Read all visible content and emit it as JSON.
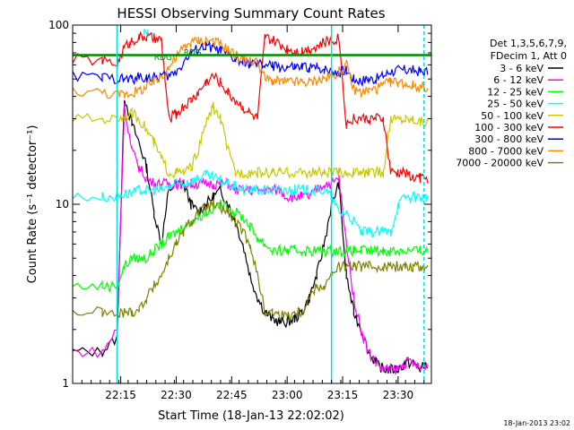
{
  "chart_data": {
    "type": "line",
    "title": "HESSI Observing Summary Count Rates",
    "xlabel": "Start Time (18-Jan-13 22:02:02)",
    "ylabel": "Count Rate (s⁻¹ detector⁻¹)",
    "yscale": "log",
    "ylim": [
      1,
      100
    ],
    "xlim_minutes": [
      0,
      97
    ],
    "x_tick_labels": [
      "22:15",
      "22:30",
      "22:45",
      "23:00",
      "23:15",
      "23:30"
    ],
    "x_tick_minutes": [
      13,
      28,
      43,
      58,
      73,
      88
    ],
    "y_tick_labels": [
      "1",
      "10",
      "100"
    ],
    "y_tick_values": [
      1,
      10,
      100
    ],
    "grid": false,
    "legend_position": "right",
    "legend_header": [
      "Det 1,3,5,6,7,9,",
      "FDecim 1, Att 0"
    ],
    "footer_date": "18-Jan-2013 23:02",
    "annotations": [
      {
        "text": "N",
        "x": 19,
        "y": 88,
        "color": "#00e0e0"
      },
      {
        "text": "F",
        "x": 15,
        "y": 75,
        "color": "#ff0000"
      },
      {
        "text": "RDG",
        "x": 22,
        "y": 64,
        "color": "#008800"
      },
      {
        "text": "RDG",
        "x": 30,
        "y": 68,
        "color": "#008800"
      }
    ],
    "vertical_lines": [
      {
        "x": 12,
        "color": "#00e0e0",
        "style": "solid"
      },
      {
        "x": 70,
        "color": "#00e0e0",
        "style": "solid"
      },
      {
        "x": 95,
        "color": "#00e0e0",
        "style": "dashed"
      }
    ],
    "series": [
      {
        "name": "3 - 6 keV",
        "color": "#000000",
        "x": [
          0,
          8,
          12,
          14,
          16,
          18,
          20,
          22,
          24,
          26,
          28,
          30,
          32,
          34,
          36,
          38,
          40,
          42,
          44,
          46,
          48,
          50,
          52,
          54,
          56,
          58,
          60,
          62,
          64,
          66,
          68,
          70,
          72,
          74,
          76,
          78,
          80,
          82,
          84,
          86,
          88,
          90,
          92,
          94,
          96
        ],
        "values": [
          1.5,
          1.5,
          1.8,
          40,
          28,
          22,
          16,
          9,
          6,
          12,
          13,
          13,
          10,
          9,
          10,
          11,
          12,
          10,
          8,
          6,
          4,
          3,
          2.5,
          2.3,
          2.2,
          2.2,
          2.3,
          2.5,
          3,
          4,
          6,
          10,
          13,
          4,
          2.5,
          2,
          1.5,
          1.3,
          1.2,
          1.2,
          1.2,
          1.3,
          1.3,
          1.2,
          1.3
        ]
      },
      {
        "name": "6 - 12 keV",
        "color": "#ff00ff",
        "x": [
          0,
          8,
          12,
          14,
          16,
          18,
          20,
          22,
          24,
          26,
          28,
          30,
          32,
          34,
          36,
          38,
          40,
          42,
          44,
          46,
          48,
          50,
          52,
          54,
          56,
          58,
          60,
          62,
          64,
          66,
          68,
          70,
          72,
          74,
          76,
          78,
          80,
          82,
          84,
          86,
          88,
          90,
          92,
          94,
          96
        ],
        "values": [
          1.5,
          1.5,
          2,
          35,
          20,
          16,
          14,
          13,
          13,
          13,
          13,
          13,
          13,
          13,
          13,
          13,
          13,
          13,
          12,
          12,
          12,
          12,
          12,
          12,
          12,
          11,
          11,
          11,
          11,
          12,
          13,
          13,
          14,
          6,
          3,
          2,
          1.5,
          1.3,
          1.2,
          1.2,
          1.2,
          1.3,
          1.3,
          1.2,
          1.3
        ]
      },
      {
        "name": "12 - 25 keV",
        "color": "#00ff00",
        "x": [
          0,
          8,
          12,
          14,
          16,
          18,
          20,
          22,
          24,
          26,
          28,
          30,
          32,
          34,
          36,
          38,
          40,
          42,
          44,
          46,
          48,
          50,
          52,
          54,
          56,
          58,
          60,
          62,
          64,
          66,
          68,
          70,
          72,
          74,
          76,
          78,
          80,
          82,
          84,
          86,
          88,
          90,
          92,
          94,
          96
        ],
        "values": [
          3.5,
          3.5,
          3.5,
          4.5,
          5,
          5,
          5,
          5.5,
          6,
          6.5,
          7,
          7.5,
          8,
          8.5,
          9,
          9.5,
          10,
          9.5,
          9,
          8.5,
          7.5,
          6.5,
          6,
          5.5,
          5.5,
          5.5,
          5.5,
          5.5,
          5.5,
          5.5,
          5.5,
          5.5,
          5.5,
          5.5,
          5.5,
          5.5,
          5.5,
          5.5,
          5.5,
          5.5,
          5.5,
          5.5,
          5.5,
          5.5,
          5.5
        ]
      },
      {
        "name": "25 - 50 keV",
        "color": "#00ffff",
        "x": [
          0,
          8,
          12,
          14,
          16,
          18,
          20,
          22,
          24,
          26,
          28,
          30,
          32,
          34,
          36,
          38,
          40,
          42,
          44,
          46,
          48,
          50,
          52,
          54,
          56,
          58,
          60,
          62,
          64,
          66,
          68,
          70,
          72,
          74,
          76,
          78,
          80,
          82,
          84,
          86,
          88,
          90,
          92,
          94,
          96
        ],
        "values": [
          11,
          11,
          11,
          11.5,
          11.5,
          12,
          12,
          12,
          12,
          12.5,
          13,
          13,
          13.5,
          14,
          14.5,
          14,
          13.5,
          13,
          12.5,
          12,
          12,
          12,
          12,
          12,
          12,
          12,
          12,
          12,
          12,
          12,
          12,
          11,
          9,
          9,
          8,
          7,
          7,
          7,
          7,
          7,
          10,
          11,
          11,
          11,
          11
        ]
      },
      {
        "name": "50 - 100 keV",
        "color": "#c8c800",
        "x": [
          0,
          8,
          12,
          14,
          16,
          18,
          20,
          22,
          24,
          26,
          28,
          30,
          32,
          34,
          36,
          38,
          40,
          42,
          44,
          46,
          48,
          50,
          52,
          54,
          56,
          58,
          60,
          62,
          64,
          66,
          68,
          70,
          72,
          74,
          76,
          78,
          80,
          82,
          84,
          86,
          88,
          90,
          92,
          94,
          96
        ],
        "values": [
          30,
          30,
          30,
          31,
          32,
          30,
          26,
          22,
          18,
          15,
          15,
          15,
          16,
          20,
          28,
          35,
          30,
          20,
          15,
          15,
          15,
          15,
          15,
          15,
          15,
          15,
          15,
          15,
          15,
          15,
          15,
          15,
          15,
          15,
          15,
          15,
          15,
          15,
          15,
          30,
          30,
          30,
          30,
          29,
          29
        ]
      },
      {
        "name": "100 - 300 keV",
        "color": "#ff0000",
        "x": [
          0,
          8,
          12,
          14,
          16,
          18,
          20,
          22,
          24,
          26,
          28,
          30,
          32,
          34,
          36,
          38,
          40,
          42,
          44,
          46,
          48,
          50,
          52,
          54,
          56,
          58,
          60,
          62,
          64,
          66,
          68,
          70,
          72,
          74,
          76,
          78,
          80,
          82,
          84,
          86,
          88,
          90,
          92,
          94,
          96
        ],
        "values": [
          65,
          63,
          60,
          75,
          82,
          85,
          86,
          84,
          82,
          30,
          32,
          35,
          38,
          42,
          48,
          52,
          48,
          42,
          38,
          35,
          32,
          30,
          85,
          82,
          78,
          74,
          72,
          72,
          74,
          76,
          80,
          82,
          85,
          28,
          30,
          30,
          30,
          30,
          30,
          15,
          15,
          15,
          14,
          14,
          14
        ]
      },
      {
        "name": "300 - 800 keV",
        "color": "#0000ff",
        "x": [
          0,
          8,
          12,
          14,
          16,
          18,
          20,
          22,
          24,
          26,
          28,
          30,
          32,
          34,
          36,
          38,
          40,
          42,
          44,
          46,
          48,
          50,
          52,
          54,
          56,
          58,
          60,
          62,
          64,
          66,
          68,
          70,
          72,
          74,
          76,
          78,
          80,
          82,
          84,
          86,
          88,
          90,
          92,
          94,
          96
        ],
        "values": [
          52,
          51,
          50,
          50,
          50,
          51,
          51,
          51,
          52,
          52,
          55,
          62,
          70,
          74,
          76,
          75,
          72,
          68,
          64,
          62,
          61,
          60,
          60,
          59,
          58,
          58,
          58,
          58,
          58,
          58,
          57,
          55,
          55,
          56,
          50,
          49,
          50,
          50,
          52,
          55,
          56,
          56,
          56,
          55,
          55
        ]
      },
      {
        "name": "800 - 7000 keV",
        "color": "#ff8800",
        "x": [
          0,
          8,
          12,
          14,
          16,
          18,
          20,
          22,
          24,
          26,
          28,
          30,
          32,
          34,
          36,
          38,
          40,
          42,
          44,
          46,
          48,
          50,
          52,
          54,
          56,
          58,
          60,
          62,
          64,
          66,
          68,
          70,
          72,
          74,
          76,
          78,
          80,
          82,
          84,
          86,
          88,
          90,
          92,
          94,
          96
        ],
        "values": [
          43,
          42,
          41,
          41,
          42,
          43,
          45,
          48,
          52,
          58,
          66,
          75,
          80,
          82,
          83,
          82,
          78,
          73,
          68,
          65,
          63,
          62,
          50,
          49,
          48,
          48,
          48,
          48,
          48,
          49,
          50,
          52,
          55,
          60,
          44,
          42,
          43,
          44,
          46,
          48,
          48,
          47,
          46,
          45,
          45
        ]
      },
      {
        "name": "7000 - 20000 keV",
        "color": "#808000",
        "x": [
          0,
          8,
          12,
          14,
          16,
          18,
          20,
          22,
          24,
          26,
          28,
          30,
          32,
          34,
          36,
          38,
          40,
          42,
          44,
          46,
          48,
          50,
          52,
          54,
          56,
          58,
          60,
          62,
          64,
          66,
          68,
          70,
          72,
          74,
          76,
          78,
          80,
          82,
          84,
          86,
          88,
          90,
          92,
          94,
          96
        ],
        "values": [
          2.5,
          2.5,
          2.4,
          2.5,
          2.5,
          2.6,
          3,
          3.5,
          4,
          5,
          6,
          7,
          8,
          9,
          9.5,
          10,
          9.5,
          9,
          8,
          7,
          6,
          4,
          2.5,
          2.5,
          2.4,
          2.4,
          2.5,
          2.5,
          3,
          3.5,
          3.5,
          4,
          4.5,
          4.5,
          4.5,
          4.5,
          4.5,
          4.5,
          4.5,
          4.5,
          4.5,
          4.5,
          4.5,
          4.5,
          4.5
        ]
      },
      {
        "name": "RDG",
        "color": "#008800",
        "x": [
          0,
          5,
          10,
          15,
          20,
          25,
          30,
          35,
          40,
          45,
          50,
          55,
          60,
          65,
          70,
          75,
          80,
          85,
          90,
          95,
          97
        ],
        "values": [
          68,
          68,
          68,
          68,
          68,
          68,
          68,
          68,
          68,
          68,
          68,
          68,
          68,
          68,
          68,
          68,
          68,
          68,
          68,
          68,
          68
        ]
      }
    ]
  }
}
